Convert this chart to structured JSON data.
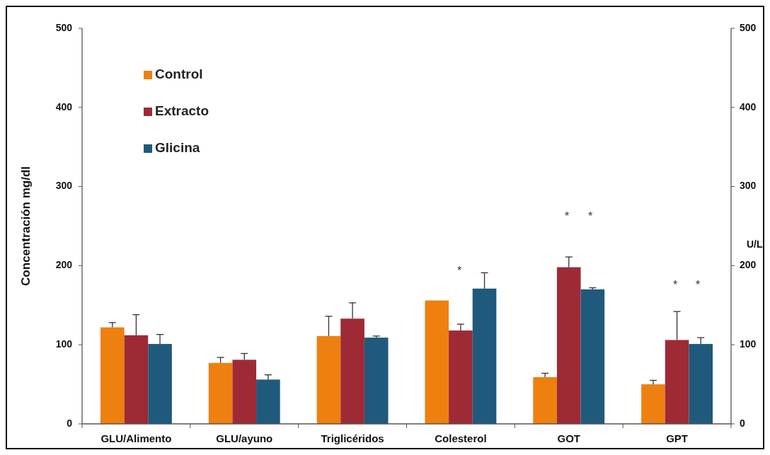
{
  "chart_data": {
    "type": "bar",
    "ylabel": "Concentración  mg/dl",
    "y2label": "U/L",
    "categories": [
      "GLU/Alimento",
      "GLU/ayuno",
      "Triglicéridos",
      "Colesterol",
      "GOT",
      "GPT"
    ],
    "series": [
      {
        "name": "Control",
        "color": "#ee8010",
        "values": [
          122,
          77,
          111,
          156,
          59,
          50
        ],
        "errors": [
          [
            122,
            128
          ],
          [
            77,
            84
          ],
          [
            111,
            136
          ],
          null,
          [
            59,
            64
          ],
          [
            50,
            55
          ]
        ]
      },
      {
        "name": "Extracto",
        "color": "#9e2a36",
        "values": [
          112,
          81,
          133,
          118,
          198,
          106
        ],
        "errors": [
          [
            112,
            138
          ],
          [
            81,
            89
          ],
          [
            133,
            153
          ],
          [
            118,
            126
          ],
          [
            198,
            211
          ],
          [
            106,
            142
          ]
        ]
      },
      {
        "name": "Glicina",
        "color": "#1f5a7c",
        "values": [
          101,
          56,
          109,
          171,
          170,
          101
        ],
        "errors": [
          [
            101,
            113
          ],
          [
            56,
            62
          ],
          [
            109,
            111
          ],
          [
            171,
            191
          ],
          [
            170,
            172
          ],
          [
            101,
            109
          ]
        ]
      }
    ],
    "ylim": [
      0,
      500
    ],
    "yticks": [
      0,
      100,
      200,
      300,
      400,
      500
    ],
    "y2lim": [
      0,
      500
    ],
    "y2ticks": [
      0,
      100,
      200,
      300,
      400,
      500
    ],
    "legend": "top left",
    "grid": false,
    "annotations": [
      "*",
      "*",
      "*",
      "*",
      "*"
    ]
  }
}
